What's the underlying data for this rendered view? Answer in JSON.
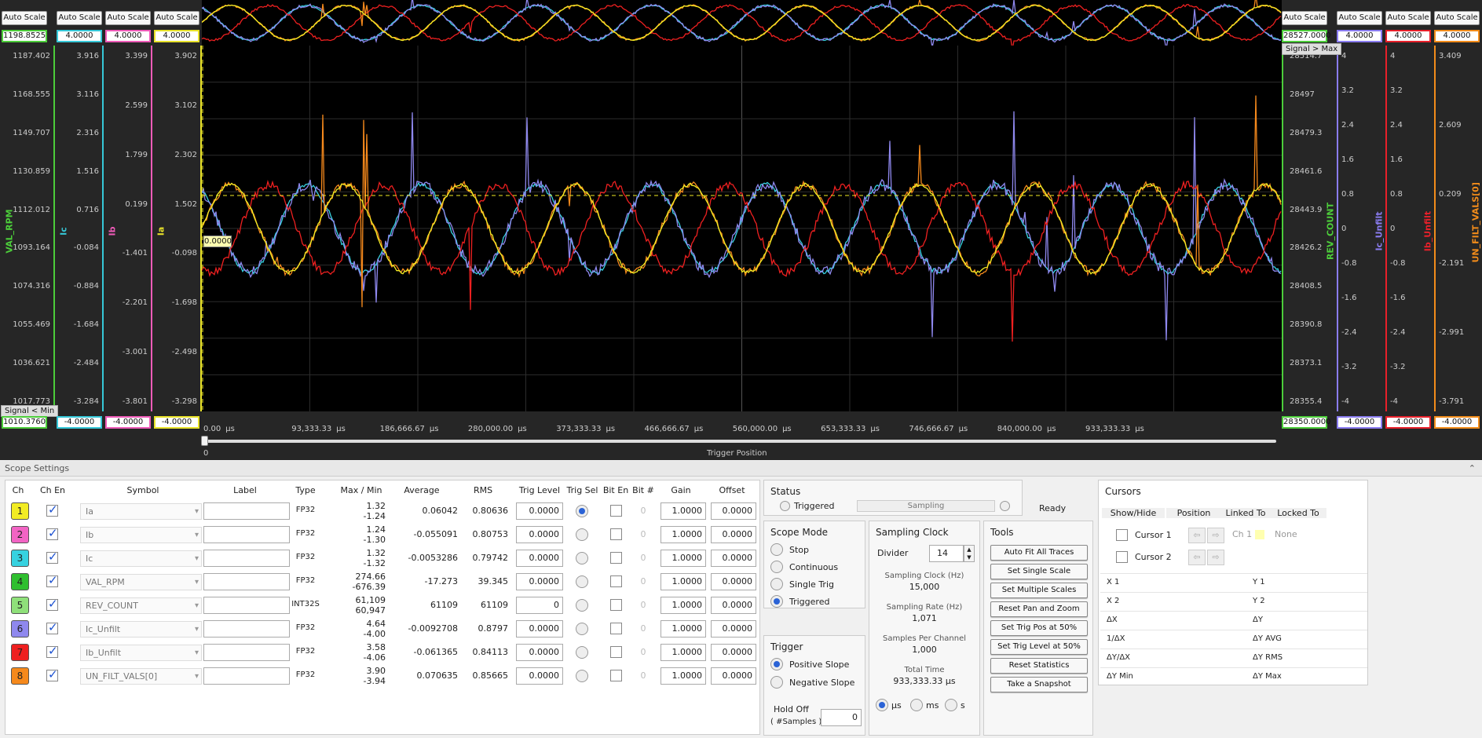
{
  "auto_scale_label": "Auto Scale",
  "left_axes": [
    {
      "name": "VAL_RPM",
      "color": "#4ccd3a",
      "max": "1198.8525",
      "min": "1010.3760",
      "ticks": [
        "1187.402",
        "1168.555",
        "1149.707",
        "1130.859",
        "1112.012",
        "1093.164",
        "1074.316",
        "1055.469",
        "1036.621",
        "1017.773"
      ]
    },
    {
      "name": "Ic",
      "color": "#36c8d8",
      "max": "4.0000",
      "min": "-4.0000",
      "ticks": [
        "3.916",
        "3.116",
        "2.316",
        "1.516",
        "0.716",
        "-0.084",
        "-0.884",
        "-1.684",
        "-2.484",
        "-3.284"
      ]
    },
    {
      "name": "Ib",
      "color": "#ee5bb8",
      "max": "4.0000",
      "min": "-4.0000",
      "ticks": [
        "3.399",
        "2.599",
        "1.799",
        "0.199",
        "-1.401",
        "-2.201",
        "-3.001",
        "-3.801"
      ]
    },
    {
      "name": "Ia",
      "color": "#e8e22a",
      "max": "4.0000",
      "min": "-4.0000",
      "ticks": [
        "3.902",
        "3.102",
        "2.302",
        "1.502",
        "-0.098",
        "-1.698",
        "-2.498",
        "-3.298"
      ]
    }
  ],
  "right_axes": [
    {
      "name": "REV_COUNT",
      "color": "#4ccd3a",
      "max": "28527.0000",
      "min": "28350.0000",
      "ticks": [
        "28514.7",
        "28497",
        "28479.3",
        "28461.6",
        "28443.9",
        "28426.2",
        "28408.5",
        "28390.8",
        "28373.1",
        "28355.4"
      ]
    },
    {
      "name": "Ic_Unfilt",
      "color": "#8a7cf0",
      "max": "4.0000",
      "min": "-4.0000",
      "ticks": [
        "4",
        "3.2",
        "2.4",
        "1.6",
        "0.8",
        "0",
        "-0.8",
        "-1.6",
        "-2.4",
        "-3.2",
        "-4"
      ]
    },
    {
      "name": "Ib_Unfilt",
      "color": "#e8202a",
      "max": "4.0000",
      "min": "-4.0000",
      "ticks": [
        "4",
        "3.2",
        "2.4",
        "1.6",
        "0.8",
        "0",
        "-0.8",
        "-1.6",
        "-2.4",
        "-3.2",
        "-4"
      ]
    },
    {
      "name": "UN_FILT_VALS[0]",
      "color": "#f28c1a",
      "max": "4.0000",
      "min": "-4.0000",
      "ticks": [
        "3.409",
        "2.609",
        "0.209",
        "-2.191",
        "-2.991",
        "-3.791"
      ]
    }
  ],
  "signal_gt_max": "Signal > Max",
  "signal_lt_min": "Signal < Min",
  "trigger_marker": "0.0000",
  "x_ticks": [
    "0.00",
    "93,333.33",
    "186,666.67",
    "280,000.00",
    "373,333.33",
    "466,666.67",
    "560,000.00",
    "653,333.33",
    "746,666.67",
    "840,000.00",
    "933,333.33"
  ],
  "x_unit": "µs",
  "trigger_slider_value": "0",
  "trigger_position_label": "Trigger Position",
  "settings_title": "Scope Settings",
  "table_headers": [
    "Ch",
    "Ch En",
    "Symbol",
    "Label",
    "Type",
    "Max / Min",
    "Average",
    "RMS",
    "Trig Level",
    "Trig Sel",
    "Bit En",
    "Bit #",
    "Gain",
    "Offset"
  ],
  "channels": [
    {
      "ch": "1",
      "color": "#f2ec24",
      "symbol": "Ia",
      "type": "FP32",
      "max": "1.32",
      "min": "-1.24",
      "avg": "0.06042",
      "rms": "0.80636",
      "trig": "0.0000",
      "bit": "0",
      "gain": "1.0000",
      "offset": "0.0000"
    },
    {
      "ch": "2",
      "color": "#f264c4",
      "symbol": "Ib",
      "type": "FP32",
      "max": "1.24",
      "min": "-1.30",
      "avg": "-0.055091",
      "rms": "0.80753",
      "trig": "0.0000",
      "bit": "0",
      "gain": "1.0000",
      "offset": "0.0000"
    },
    {
      "ch": "3",
      "color": "#36d2e0",
      "symbol": "Ic",
      "type": "FP32",
      "max": "1.32",
      "min": "-1.32",
      "avg": "-0.0053286",
      "rms": "0.79742",
      "trig": "0.0000",
      "bit": "0",
      "gain": "1.0000",
      "offset": "0.0000"
    },
    {
      "ch": "4",
      "color": "#2fbf2f",
      "symbol": "VAL_RPM",
      "type": "FP32",
      "max": "274.66",
      "min": "-676.39",
      "avg": "-17.273",
      "rms": "39.345",
      "trig": "0.0000",
      "bit": "0",
      "gain": "1.0000",
      "offset": "0.0000"
    },
    {
      "ch": "5",
      "color": "#8fe07a",
      "symbol": "REV_COUNT",
      "type": "INT32S",
      "max": "61,109",
      "min": "60,947",
      "avg": "61109",
      "rms": "61109",
      "trig": "0",
      "bit": "0",
      "gain": "1.0000",
      "offset": "0.0000"
    },
    {
      "ch": "6",
      "color": "#8f88ee",
      "symbol": "Ic_Unfilt",
      "type": "FP32",
      "max": "4.64",
      "min": "-4.00",
      "avg": "-0.0092708",
      "rms": "0.8797",
      "trig": "0.0000",
      "bit": "0",
      "gain": "1.0000",
      "offset": "0.0000"
    },
    {
      "ch": "7",
      "color": "#ee2020",
      "symbol": "Ib_Unfilt",
      "type": "FP32",
      "max": "3.58",
      "min": "-4.06",
      "avg": "-0.061365",
      "rms": "0.84113",
      "trig": "0.0000",
      "bit": "0",
      "gain": "1.0000",
      "offset": "0.0000"
    },
    {
      "ch": "8",
      "color": "#f5891c",
      "symbol": "UN_FILT_VALS[0]",
      "type": "FP32",
      "max": "3.90",
      "min": "-3.94",
      "avg": "0.070635",
      "rms": "0.85665",
      "trig": "0.0000",
      "bit": "0",
      "gain": "1.0000",
      "offset": "0.0000"
    }
  ],
  "status": {
    "title": "Status",
    "triggered": "Triggered",
    "sampling": "Sampling",
    "ready": "Ready"
  },
  "scope_mode": {
    "title": "Scope Mode",
    "options": [
      "Stop",
      "Continuous",
      "Single Trig",
      "Triggered"
    ],
    "selected": 3
  },
  "trigger": {
    "title": "Trigger",
    "options": [
      "Positive Slope",
      "Negative Slope"
    ],
    "selected": 0,
    "hold_off_label": "Hold Off",
    "hold_off_sub": "( #Samples )",
    "hold_off_value": "0"
  },
  "sampling_clock": {
    "title": "Sampling Clock",
    "divider_label": "Divider",
    "divider_value": "14",
    "clock_label": "Sampling Clock (Hz)",
    "clock_value": "15,000",
    "rate_label": "Sampling Rate (Hz)",
    "rate_value": "1,071",
    "spc_label": "Samples Per Channel",
    "spc_value": "1,000",
    "total_label": "Total Time",
    "total_value": "933,333.33 µs",
    "units": [
      "µs",
      "ms",
      "s"
    ],
    "unit_selected": 0
  },
  "tools": {
    "title": "Tools",
    "buttons": [
      "Auto Fit All Traces",
      "Set Single Scale",
      "Set Multiple Scales",
      "Reset Pan and Zoom",
      "Set Trig Pos at 50%",
      "Set Trig Level at 50%",
      "Reset Statistics",
      "Take a Snapshot"
    ]
  },
  "cursors": {
    "title": "Cursors",
    "headers": [
      "Show/Hide",
      "Position",
      "Linked To",
      "Locked To"
    ],
    "rows": [
      {
        "name": "Cursor 1",
        "linked": "Ch 1",
        "locked": "None"
      },
      {
        "name": "Cursor 2"
      }
    ],
    "readouts_left": [
      "X 1",
      "X 2",
      "ΔX",
      "1/ΔX",
      "ΔY/ΔX",
      "ΔY Min"
    ],
    "readouts_right": [
      "Y 1",
      "Y 2",
      "ΔY",
      "ΔY AVG",
      "ΔY RMS",
      "ΔY Max"
    ]
  }
}
